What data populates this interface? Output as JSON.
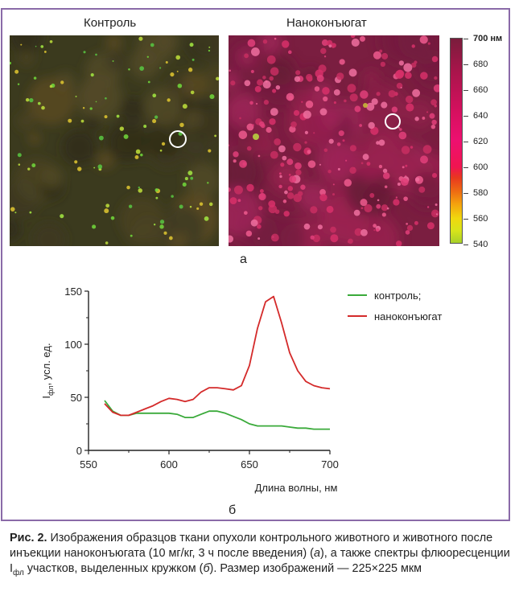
{
  "panel_a": {
    "left_title": "Контроль",
    "right_title": "Наноконъюгат",
    "letter": "а",
    "scale": {
      "top_label": "700 нм",
      "ticks": [
        "680",
        "660",
        "640",
        "620",
        "600",
        "580",
        "560",
        "540"
      ]
    }
  },
  "panel_b": {
    "letter": "б"
  },
  "chart_data": {
    "type": "line",
    "xlabel": "Длина волны, нм",
    "ylabel": "I",
    "ylabel_sub": "фл",
    "ylabel_tail": ", усл. ед.",
    "xlim": [
      550,
      700
    ],
    "ylim": [
      0,
      150
    ],
    "xticks": [
      "550",
      "600",
      "650",
      "700"
    ],
    "yticks": [
      "0",
      "50",
      "100",
      "150"
    ],
    "legend_position": "top-right",
    "series": [
      {
        "name": "контроль;",
        "color": "#3aaa3a",
        "x": [
          560,
          565,
          570,
          575,
          580,
          585,
          590,
          595,
          600,
          605,
          610,
          615,
          620,
          625,
          630,
          635,
          640,
          645,
          650,
          655,
          660,
          665,
          670,
          675,
          680,
          685,
          690,
          695,
          700
        ],
        "y": [
          47,
          37,
          33,
          33,
          35,
          35,
          35,
          35,
          35,
          34,
          31,
          31,
          34,
          37,
          37,
          35,
          32,
          29,
          25,
          23,
          23,
          23,
          23,
          22,
          21,
          21,
          20,
          20,
          20
        ]
      },
      {
        "name": "наноконъюгат",
        "color": "#d42a2a",
        "x": [
          560,
          565,
          570,
          575,
          580,
          585,
          590,
          595,
          600,
          605,
          610,
          615,
          620,
          625,
          630,
          635,
          640,
          645,
          650,
          655,
          660,
          665,
          670,
          675,
          680,
          685,
          690,
          695,
          700
        ],
        "y": [
          44,
          36,
          33,
          33,
          36,
          39,
          42,
          46,
          49,
          48,
          46,
          48,
          55,
          59,
          59,
          58,
          57,
          61,
          80,
          115,
          140,
          145,
          120,
          92,
          75,
          65,
          61,
          59,
          58
        ]
      }
    ]
  },
  "caption": {
    "label": "Рис. 2.",
    "text_1": " Изображения образцов ткани опухоли контрольного животного и животного после инъекции наноконъюгата (10 мг/кг, 3 ч после введения) (",
    "italic_a": "а",
    "text_2": "), а также спектры флюоресценции I",
    "sub": "фл",
    "text_3": " участков, выделенных кружком (",
    "italic_b": "б",
    "text_4": "). Размер изображений — 225×225 мкм"
  },
  "colors": {
    "frame": "#8a6aa8",
    "control_curve": "#3aaa3a",
    "nano_curve": "#d42a2a"
  }
}
